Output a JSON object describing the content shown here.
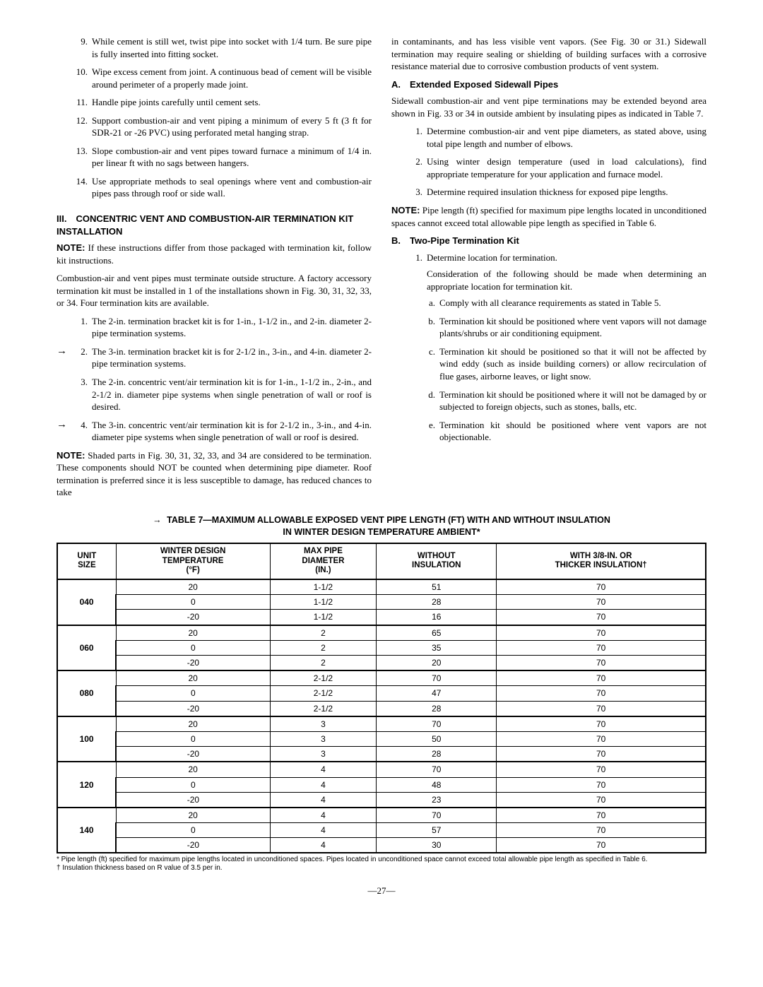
{
  "left": {
    "items_first": [
      {
        "n": "9.",
        "t": "While cement is still wet, twist pipe into socket with 1/4 turn. Be sure pipe is fully inserted into fitting socket."
      },
      {
        "n": "10.",
        "t": "Wipe excess cement from joint. A continuous bead of cement will be visible around perimeter of a properly made joint."
      },
      {
        "n": "11.",
        "t": "Handle pipe joints carefully until cement sets."
      },
      {
        "n": "12.",
        "t": "Support combustion-air and vent piping a minimum of every 5 ft (3 ft for SDR-21 or -26 PVC) using perforated metal hanging strap."
      },
      {
        "n": "13.",
        "t": "Slope combustion-air and vent pipes toward furnace a minimum of 1/4 in. per linear ft with no sags between hangers."
      },
      {
        "n": "14.",
        "t": "Use appropriate methods to seal openings where vent and combustion-air pipes pass through roof or side wall."
      }
    ],
    "h3": "III. CONCENTRIC VENT AND COMBUSTION-AIR TERMINATION KIT INSTALLATION",
    "note1_label": "NOTE:",
    "note1_text": " If these instructions differ from those packaged with termination kit, follow kit instructions.",
    "para1": "Combustion-air and vent pipes must terminate outside structure. A factory accessory termination kit must be installed in 1 of the installations shown in Fig. 30, 31, 32, 33, or 34. Four termination kits are available.",
    "kits": [
      {
        "arrow": "",
        "n": "1.",
        "t": "The 2-in. termination bracket kit is for 1-in., 1-1/2 in., and 2-in. diameter 2-pipe termination systems."
      },
      {
        "arrow": "→",
        "n": "2.",
        "t": "The 3-in. termination bracket kit is for 2-1/2 in., 3-in., and 4-in. diameter 2-pipe termination systems."
      },
      {
        "arrow": "",
        "n": "3.",
        "t": "The 2-in. concentric vent/air termination kit is for 1-in., 1-1/2 in., 2-in., and 2-1/2 in. diameter pipe systems when single penetration of wall or roof is desired."
      },
      {
        "arrow": "→",
        "n": "4.",
        "t": "The 3-in. concentric vent/air termination kit is for 2-1/2 in., 3-in., and 4-in. diameter pipe systems when single penetration of wall or roof is desired."
      }
    ],
    "note2_label": "NOTE:",
    "note2_text": "  Shaded parts in Fig. 30, 31, 32, 33, and 34 are considered to be termination. These components should NOT be counted when determining pipe diameter. Roof termination is preferred since it is less susceptible to damage, has reduced chances to take"
  },
  "right": {
    "cont": "in contaminants, and has less visible vent vapors. (See Fig. 30 or 31.) Sidewall termination may require sealing or shielding of building surfaces with a corrosive resistance material due to corrosive combustion products of vent system.",
    "hA": "A. Extended Exposed Sidewall Pipes",
    "paraA": "Sidewall combustion-air and vent pipe terminations may be extended beyond area shown in Fig. 33 or 34 in outside ambient by insulating pipes as indicated in Table 7.",
    "listA": [
      {
        "n": "1.",
        "t": "Determine combustion-air and vent pipe diameters, as stated above, using total pipe length and number of elbows."
      },
      {
        "n": "2.",
        "t": "Using winter design temperature (used in load calculations), find appropriate temperature for your application and furnace model."
      },
      {
        "n": "3.",
        "t": "Determine required insulation thickness for exposed pipe lengths."
      }
    ],
    "noteA_label": "NOTE:",
    "noteA_text": " Pipe length (ft) specified for maximum pipe lengths located in unconditioned spaces cannot exceed total allowable pipe length as specified in Table 6.",
    "hB": "B. Two-Pipe Termination Kit",
    "b1_n": "1.",
    "b1_t": "Determine location for termination.",
    "b1_sub": "Consideration of the following should be made when determining an appropriate location for termination kit.",
    "b1_items": [
      {
        "n": "a.",
        "t": "Comply with all clearance requirements as stated in Table 5."
      },
      {
        "n": "b.",
        "t": "Termination kit should be positioned where vent vapors will not damage plants/shrubs or air conditioning equipment."
      },
      {
        "n": "c.",
        "t": "Termination kit should be positioned so that it will not be affected by wind eddy (such as inside building corners) or allow recirculation of flue gases, airborne leaves, or light snow."
      },
      {
        "n": "d.",
        "t": "Termination kit should be positioned where it will not be damaged by or subjected to foreign objects, such as stones, balls, etc."
      },
      {
        "n": "e.",
        "t": "Termination kit should be positioned where vent vapors are not objectionable."
      }
    ]
  },
  "table": {
    "arrow": "→",
    "title_l1": "TABLE 7—MAXIMUM ALLOWABLE EXPOSED VENT PIPE LENGTH (FT) WITH AND WITHOUT INSULATION",
    "title_l2": "IN WINTER DESIGN TEMPERATURE AMBIENT*",
    "headers": [
      "UNIT\nSIZE",
      "WINTER DESIGN\nTEMPERATURE\n(°F)",
      "MAX PIPE\nDIAMETER\n(IN.)",
      "WITHOUT\nINSULATION",
      "WITH 3/8-IN. OR\nTHICKER INSULATION†"
    ],
    "groups": [
      {
        "unit": "040",
        "rows": [
          [
            "20",
            "1-1/2",
            "51",
            "70"
          ],
          [
            "0",
            "1-1/2",
            "28",
            "70"
          ],
          [
            "-20",
            "1-1/2",
            "16",
            "70"
          ]
        ]
      },
      {
        "unit": "060",
        "rows": [
          [
            "20",
            "2",
            "65",
            "70"
          ],
          [
            "0",
            "2",
            "35",
            "70"
          ],
          [
            "-20",
            "2",
            "20",
            "70"
          ]
        ]
      },
      {
        "unit": "080",
        "rows": [
          [
            "20",
            "2-1/2",
            "70",
            "70"
          ],
          [
            "0",
            "2-1/2",
            "47",
            "70"
          ],
          [
            "-20",
            "2-1/2",
            "28",
            "70"
          ]
        ]
      },
      {
        "unit": "100",
        "rows": [
          [
            "20",
            "3",
            "70",
            "70"
          ],
          [
            "0",
            "3",
            "50",
            "70"
          ],
          [
            "-20",
            "3",
            "28",
            "70"
          ]
        ]
      },
      {
        "unit": "120",
        "rows": [
          [
            "20",
            "4",
            "70",
            "70"
          ],
          [
            "0",
            "4",
            "48",
            "70"
          ],
          [
            "-20",
            "4",
            "23",
            "70"
          ]
        ]
      },
      {
        "unit": "140",
        "rows": [
          [
            "20",
            "4",
            "70",
            "70"
          ],
          [
            "0",
            "4",
            "57",
            "70"
          ],
          [
            "-20",
            "4",
            "30",
            "70"
          ]
        ]
      }
    ],
    "footnote1": "* Pipe length (ft) specified for maximum pipe lengths located in unconditioned spaces. Pipes located in unconditioned space cannot exceed total allowable pipe length as specified in Table 6.",
    "footnote2": "† Insulation thickness based on R value of 3.5 per in."
  },
  "page": "—27—"
}
